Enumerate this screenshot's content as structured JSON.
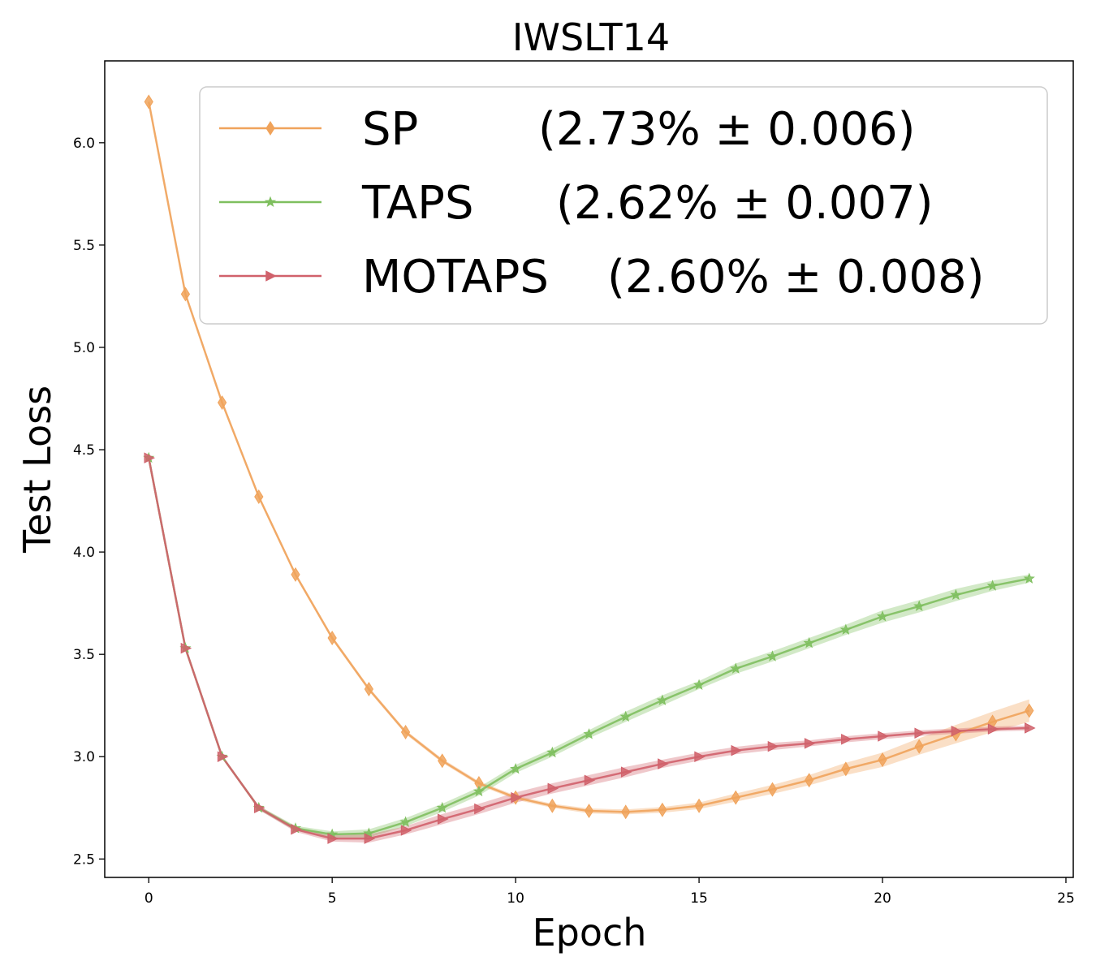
{
  "chart_data": {
    "type": "line",
    "title": "IWSLT14",
    "xlabel": "Epoch",
    "ylabel": "Test Loss",
    "xlim": [
      -1.2,
      25.2
    ],
    "ylim": [
      2.41,
      6.4
    ],
    "xticks": [
      0,
      5,
      10,
      15,
      20,
      25
    ],
    "xtick_labels": [
      "0",
      "5",
      "10",
      "15",
      "20",
      "25"
    ],
    "yticks": [
      2.5,
      3.0,
      3.5,
      4.0,
      4.5,
      5.0,
      5.5,
      6.0
    ],
    "ytick_labels": [
      "2.5",
      "3.0",
      "3.5",
      "4.0",
      "4.5",
      "5.0",
      "5.5",
      "6.0"
    ],
    "grid": false,
    "legend_position": "top-right",
    "x": [
      0,
      1,
      2,
      3,
      4,
      5,
      6,
      7,
      8,
      9,
      10,
      11,
      12,
      13,
      14,
      15,
      16,
      17,
      18,
      19,
      20,
      21,
      22,
      23,
      24
    ],
    "series": [
      {
        "name": "SP",
        "legend_name": "SP",
        "legend_stat": "(2.73% ± 0.006)",
        "color": "#f0a35b",
        "marker": "diamond",
        "values": [
          6.2,
          5.26,
          4.73,
          4.27,
          3.89,
          3.58,
          3.33,
          3.12,
          2.98,
          2.87,
          2.8,
          2.76,
          2.735,
          2.73,
          2.74,
          2.76,
          2.8,
          2.84,
          2.885,
          2.94,
          2.985,
          3.05,
          3.11,
          3.17,
          3.225
        ],
        "band": [
          0.01,
          0.01,
          0.01,
          0.01,
          0.01,
          0.01,
          0.01,
          0.01,
          0.01,
          0.01,
          0.01,
          0.01,
          0.012,
          0.012,
          0.014,
          0.016,
          0.02,
          0.022,
          0.025,
          0.03,
          0.035,
          0.04,
          0.045,
          0.05,
          0.055
        ]
      },
      {
        "name": "TAPS",
        "legend_name": "TAPS",
        "legend_stat": "(2.62% ± 0.007)",
        "color": "#7fbf5f",
        "marker": "star",
        "values": [
          4.46,
          3.53,
          3.0,
          2.75,
          2.65,
          2.62,
          2.625,
          2.68,
          2.75,
          2.83,
          2.94,
          3.02,
          3.11,
          3.195,
          3.275,
          3.35,
          3.43,
          3.49,
          3.555,
          3.62,
          3.685,
          3.735,
          3.79,
          3.835,
          3.87
        ],
        "band": [
          0.005,
          0.005,
          0.005,
          0.01,
          0.012,
          0.015,
          0.02,
          0.02,
          0.02,
          0.02,
          0.02,
          0.02,
          0.02,
          0.025,
          0.025,
          0.02,
          0.025,
          0.025,
          0.025,
          0.025,
          0.03,
          0.03,
          0.03,
          0.025,
          0.02
        ]
      },
      {
        "name": "MOTAPS",
        "legend_name": "MOTAPS",
        "legend_stat": "(2.60% ± 0.008)",
        "color": "#d0616b",
        "marker": "triangle-right",
        "values": [
          4.46,
          3.53,
          3.0,
          2.75,
          2.645,
          2.6,
          2.6,
          2.64,
          2.695,
          2.745,
          2.8,
          2.845,
          2.885,
          2.925,
          2.965,
          3.0,
          3.03,
          3.05,
          3.065,
          3.085,
          3.1,
          3.115,
          3.125,
          3.135,
          3.14
        ],
        "band": [
          0.005,
          0.005,
          0.005,
          0.01,
          0.012,
          0.015,
          0.02,
          0.02,
          0.025,
          0.025,
          0.025,
          0.025,
          0.025,
          0.025,
          0.02,
          0.02,
          0.018,
          0.018,
          0.015,
          0.015,
          0.015,
          0.014,
          0.013,
          0.012,
          0.012
        ]
      }
    ]
  }
}
